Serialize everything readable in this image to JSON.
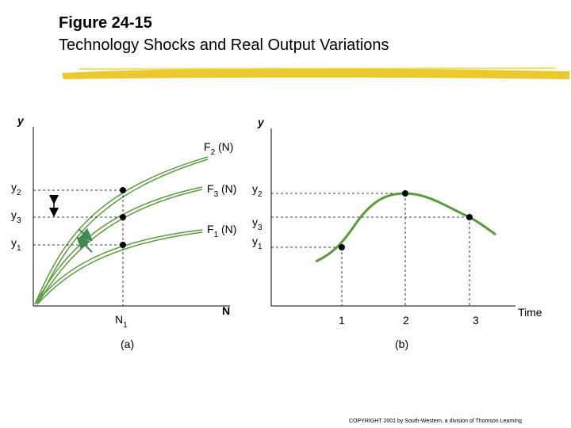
{
  "figure": {
    "title": "Figure 24-15",
    "subtitle": "Technology Shocks and Real Output Variations"
  },
  "panel_a": {
    "y_axis_label": "y",
    "x_axis_label": "N",
    "panel_label": "(a)",
    "n_label": "N",
    "n_sub": "1",
    "curves": [
      {
        "label": "F",
        "sub": "2",
        "suffix": " (N)"
      },
      {
        "label": "F",
        "sub": "3",
        "suffix": " (N)"
      },
      {
        "label": "F",
        "sub": "1",
        "suffix": " (N)"
      }
    ],
    "levels": [
      {
        "label": "y",
        "sub": "2"
      },
      {
        "label": "y",
        "sub": "3"
      },
      {
        "label": "y",
        "sub": "1"
      }
    ]
  },
  "panel_b": {
    "y_axis_label": "y",
    "x_axis_label": "Time",
    "panel_label": "(b)",
    "ticks": [
      "1",
      "2",
      "3"
    ],
    "levels": [
      {
        "label": "y",
        "sub": "2"
      },
      {
        "label": "y",
        "sub": "3"
      },
      {
        "label": "y",
        "sub": "1"
      }
    ]
  },
  "colors": {
    "curve": "#5a9b3a",
    "highlight": "#e8c21a",
    "arrow_green": "#3f8a52"
  },
  "copyright": "COPYRIGHT 2001 by South-Western, a division of Thomson Learning"
}
